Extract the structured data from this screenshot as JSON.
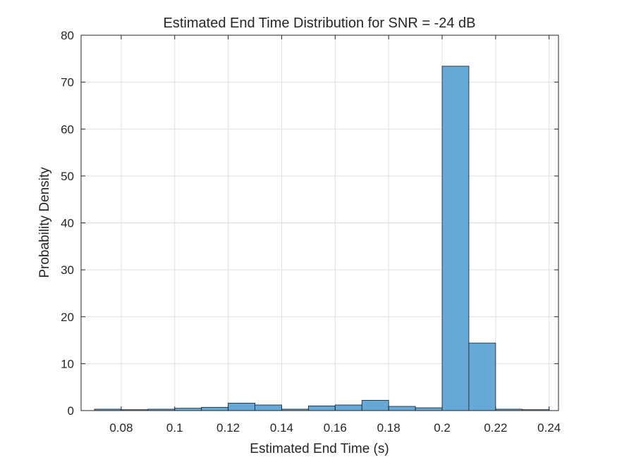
{
  "chart_data": {
    "type": "bar",
    "title": "Estimated End Time Distribution for SNR = -24 dB",
    "xlabel": "Estimated End Time (s)",
    "ylabel": "Probability Density",
    "xlim": [
      0.065,
      0.2435
    ],
    "ylim": [
      0,
      80
    ],
    "x_ticks": [
      0.08,
      0.1,
      0.12,
      0.14,
      0.16,
      0.18,
      0.2,
      0.22,
      0.24
    ],
    "x_tick_labels": [
      "0.08",
      "0.1",
      "0.12",
      "0.14",
      "0.16",
      "0.18",
      "0.2",
      "0.22",
      "0.24"
    ],
    "y_ticks": [
      0,
      10,
      20,
      30,
      40,
      50,
      60,
      70,
      80
    ],
    "y_tick_labels": [
      "0",
      "10",
      "20",
      "30",
      "40",
      "50",
      "60",
      "70",
      "80"
    ],
    "grid": true,
    "bar_color": "#66a9d7",
    "bins": [
      {
        "start": 0.07,
        "end": 0.08,
        "value": 0.3
      },
      {
        "start": 0.08,
        "end": 0.09,
        "value": 0.2
      },
      {
        "start": 0.09,
        "end": 0.1,
        "value": 0.3
      },
      {
        "start": 0.1,
        "end": 0.11,
        "value": 0.5
      },
      {
        "start": 0.11,
        "end": 0.12,
        "value": 0.7
      },
      {
        "start": 0.12,
        "end": 0.13,
        "value": 1.6
      },
      {
        "start": 0.13,
        "end": 0.14,
        "value": 1.2
      },
      {
        "start": 0.14,
        "end": 0.15,
        "value": 0.3
      },
      {
        "start": 0.15,
        "end": 0.16,
        "value": 1.0
      },
      {
        "start": 0.16,
        "end": 0.17,
        "value": 1.2
      },
      {
        "start": 0.17,
        "end": 0.18,
        "value": 2.2
      },
      {
        "start": 0.18,
        "end": 0.19,
        "value": 0.9
      },
      {
        "start": 0.19,
        "end": 0.2,
        "value": 0.6
      },
      {
        "start": 0.2,
        "end": 0.21,
        "value": 73.4
      },
      {
        "start": 0.21,
        "end": 0.22,
        "value": 14.4
      },
      {
        "start": 0.22,
        "end": 0.23,
        "value": 0.3
      },
      {
        "start": 0.23,
        "end": 0.24,
        "value": 0.2
      }
    ]
  }
}
